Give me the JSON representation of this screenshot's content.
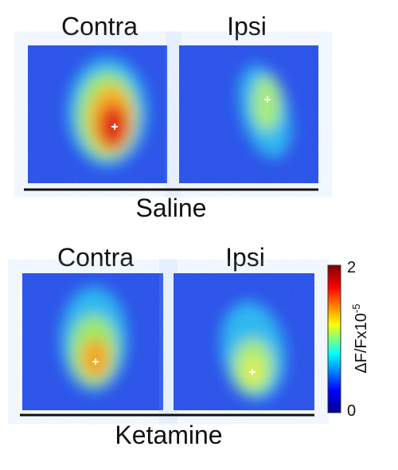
{
  "groups": [
    {
      "label": "Saline",
      "panels": [
        {
          "label": "Contra"
        },
        {
          "label": "Ipsi"
        }
      ]
    },
    {
      "label": "Ketamine",
      "panels": [
        {
          "label": "Contra"
        },
        {
          "label": "Ipsi"
        }
      ]
    }
  ],
  "colorbar": {
    "label": "ΔF/Fx10",
    "exponent": "-5",
    "ticks": [
      2,
      0
    ]
  }
}
